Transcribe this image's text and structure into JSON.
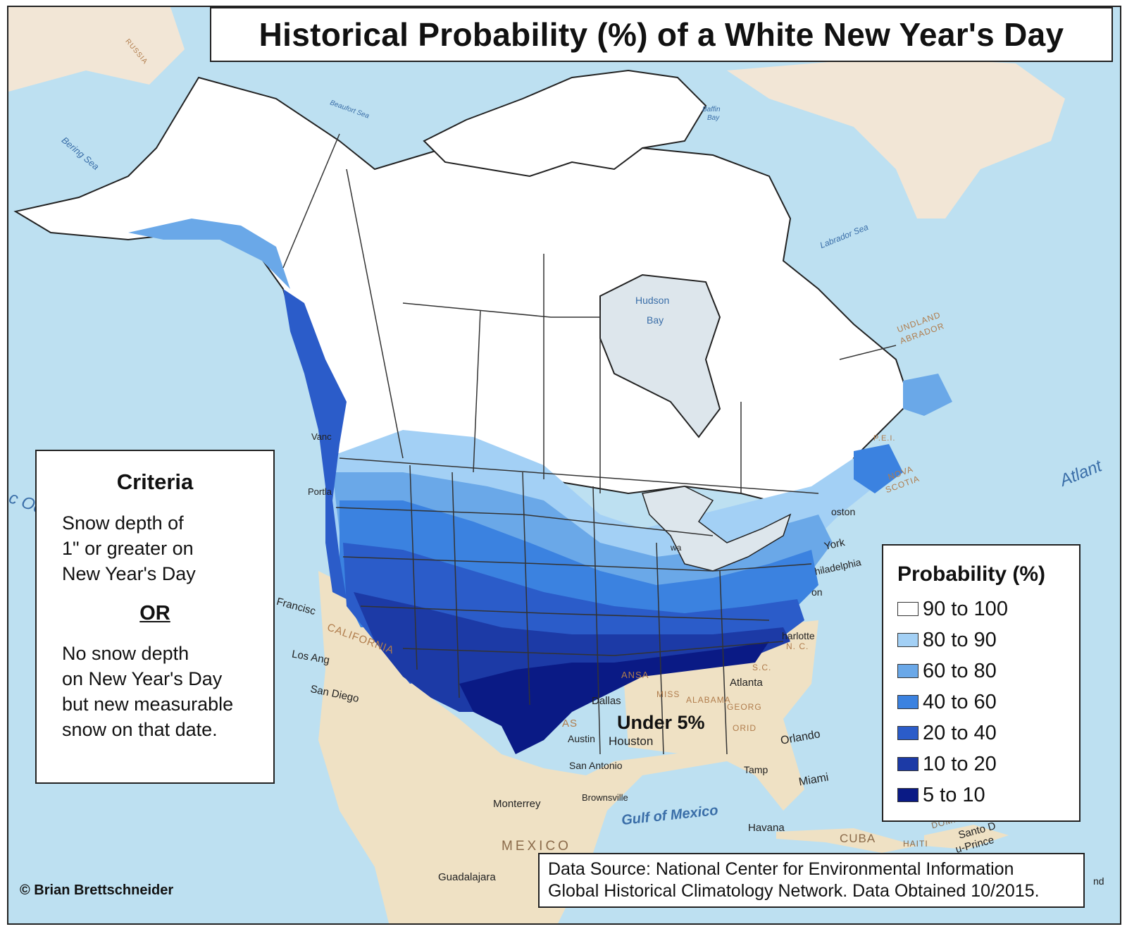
{
  "title": "Historical Probability (%) of a White New Year's Day",
  "criteria": {
    "heading": "Criteria",
    "line1": [
      "Snow depth of",
      "1\" or greater on",
      "New Year's Day"
    ],
    "or": "OR",
    "line2": [
      "No snow depth",
      "on New Year's Day",
      "but new measurable",
      "snow on that date."
    ]
  },
  "legend": {
    "title": "Probability (%)",
    "items": [
      {
        "label": "90 to 100",
        "color": "#ffffff"
      },
      {
        "label": "80 to 90",
        "color": "#a3d0f5"
      },
      {
        "label": "60 to 80",
        "color": "#6aa8e8"
      },
      {
        "label": "40 to 60",
        "color": "#3b82e0"
      },
      {
        "label": "20 to 40",
        "color": "#2b5cc9"
      },
      {
        "label": "10 to 20",
        "color": "#1c3aa6"
      },
      {
        "label": "5 to 10",
        "color": "#0a1a85"
      }
    ]
  },
  "under_label": "Under 5%",
  "source": {
    "line1": "Data Source: National Center for Environmental Information",
    "line2": "Global Historical Climatology Network. Data Obtained 10/2015."
  },
  "credit": "© Brian Brettschneider",
  "map_labels": {
    "water": {
      "bering_sea": "Bering Sea",
      "beaufort_sea": "Beaufort Sea",
      "baffin_bay_1": "Baffin",
      "baffin_bay_2": "Bay",
      "labrador_sea": "Labrador Sea",
      "hudson_bay_1": "Hudson",
      "hudson_bay_2": "Bay",
      "atlantic": "Atlant",
      "pacific": "c Oc",
      "gulf_of_mexico": "Gulf of Mexico"
    },
    "regions": {
      "russia": "RUSSIA",
      "newfoundland_1": "UNDLAND",
      "newfoundland_2": "ABRADOR",
      "pei": "P.E.I.",
      "nova_scotia_1": "NOVA",
      "nova_scotia_2": "SCOTIA",
      "california": "CALIFORNIA",
      "mexico": "MEXICO",
      "cuba": "CUBA",
      "haiti": "HAITI",
      "dominican": "DOMI",
      "texas": "AS",
      "arkansas": "ANSA",
      "mississippi": "MISS",
      "alabama": "ALABAMA",
      "georgia": "GEORG",
      "florida": "ORID",
      "south_carolina": "S.C.",
      "north_carolina": "N. C."
    },
    "cities": {
      "vancouver": "Vanc",
      "portland": "Portla",
      "san_francisco": "Francisc",
      "los_angeles": "Los Ang",
      "san_diego": "San Diego",
      "dallas": "Dallas",
      "austin": "Austin",
      "houston": "Houston",
      "san_antonio": "San Antonio",
      "brownsville": "Brownsville",
      "monterrey": "Monterrey",
      "guadalajara": "Guadalajara",
      "atlanta": "Atlanta",
      "charlotte": "harlotte",
      "orlando": "Orlando",
      "tampa": "Tamp",
      "miami": "Miami",
      "havana": "Havana",
      "santo_domingo": "Santo D",
      "port_au_prince": "u-Prince",
      "boston": "oston",
      "new_york": "York",
      "philadelphia": "hiladelphia",
      "washington": "on",
      "ottawa": "wa",
      "corner": "nd"
    }
  }
}
